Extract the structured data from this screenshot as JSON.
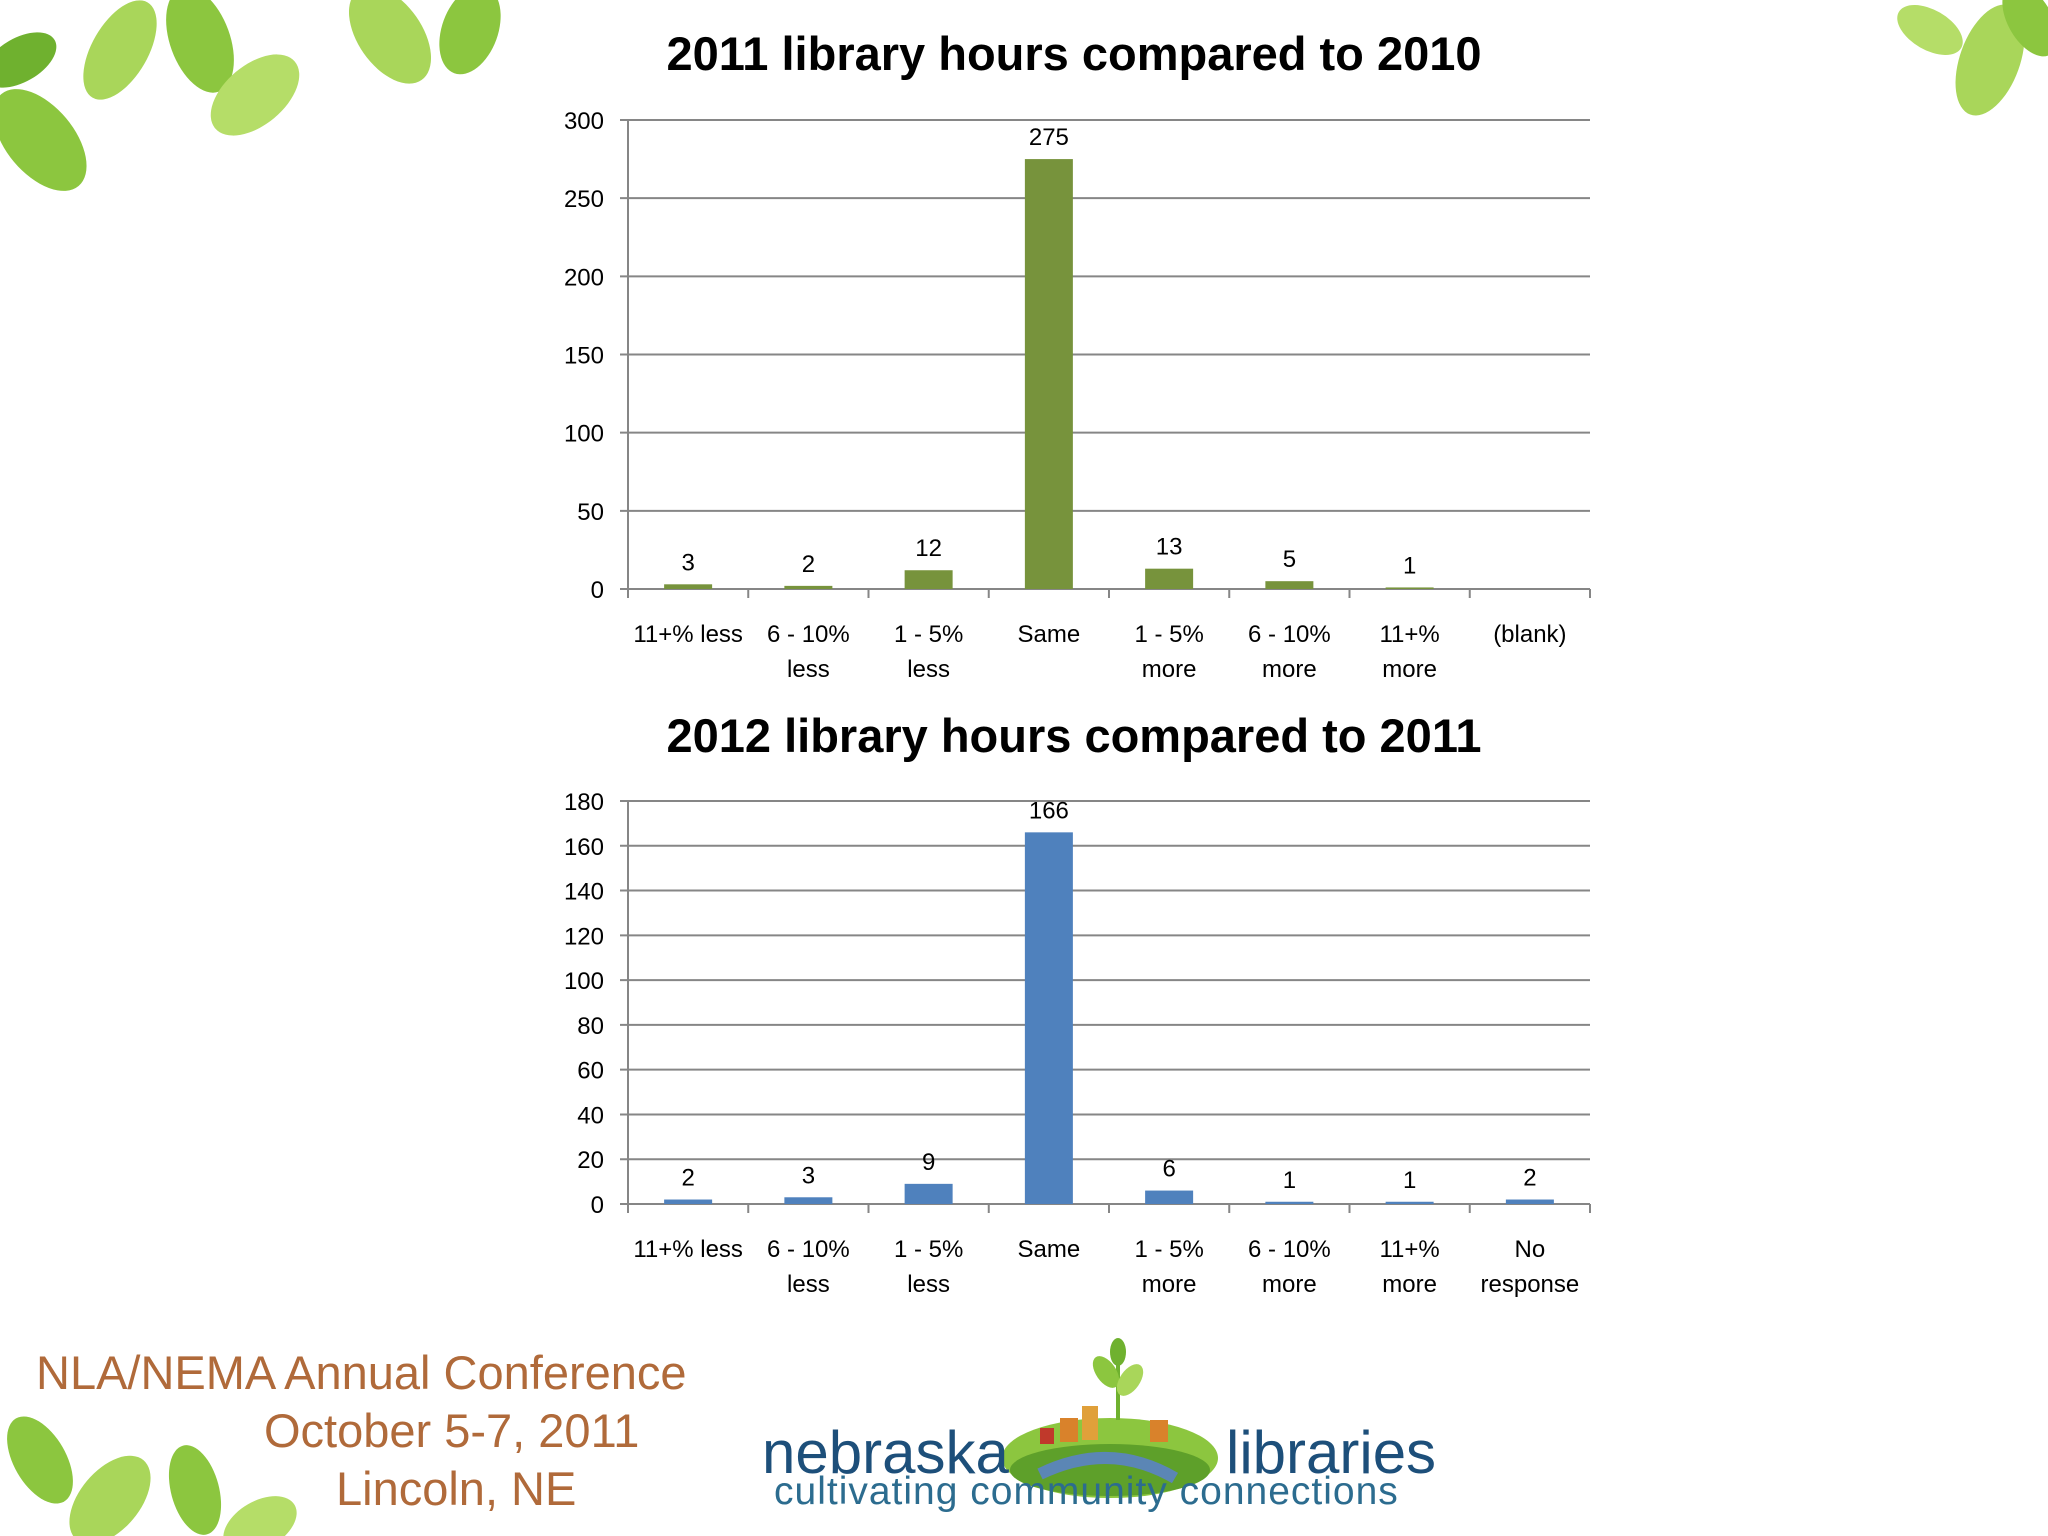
{
  "chart_data": [
    {
      "type": "bar",
      "title": "2011 library hours compared to 2010",
      "categories": [
        "11+% less",
        "6 - 10% less",
        "1 - 5% less",
        "Same",
        "1 - 5% more",
        "6 - 10% more",
        "11+% more",
        "(blank)"
      ],
      "category_lines": [
        [
          "11+% less"
        ],
        [
          "6 - 10%",
          "less"
        ],
        [
          "1 - 5%",
          "less"
        ],
        [
          "Same"
        ],
        [
          "1 - 5%",
          "more"
        ],
        [
          "6 - 10%",
          "more"
        ],
        [
          "11+%",
          "more"
        ],
        [
          "(blank)"
        ]
      ],
      "values": [
        3,
        2,
        12,
        275,
        13,
        5,
        1,
        null
      ],
      "data_labels": [
        "3",
        "2",
        "12",
        "275",
        "13",
        "5",
        "1",
        ""
      ],
      "ylim": [
        0,
        300
      ],
      "yticks": [
        0,
        50,
        100,
        150,
        200,
        250,
        300
      ],
      "grid": true,
      "color": "#77933c",
      "legend": "none"
    },
    {
      "type": "bar",
      "title": "2012 library hours compared to 2011",
      "categories": [
        "11+% less",
        "6 - 10% less",
        "1 - 5% less",
        "Same",
        "1 - 5% more",
        "6 - 10% more",
        "11+% more",
        "No response"
      ],
      "category_lines": [
        [
          "11+% less"
        ],
        [
          "6 - 10%",
          "less"
        ],
        [
          "1 - 5%",
          "less"
        ],
        [
          "Same"
        ],
        [
          "1 - 5%",
          "more"
        ],
        [
          "6 - 10%",
          "more"
        ],
        [
          "11+%",
          "more"
        ],
        [
          "No",
          "response"
        ]
      ],
      "values": [
        2,
        3,
        9,
        166,
        6,
        1,
        1,
        2
      ],
      "data_labels": [
        "2",
        "3",
        "9",
        "166",
        "6",
        "1",
        "1",
        "2"
      ],
      "ylim": [
        0,
        180
      ],
      "yticks": [
        0,
        20,
        40,
        60,
        80,
        100,
        120,
        140,
        160,
        180
      ],
      "grid": true,
      "color": "#4f81bd",
      "legend": "none"
    }
  ],
  "conference": {
    "line1": "NLA/NEMA Annual Conference",
    "line2": "October 5-7, 2011",
    "line3": "Lincoln, NE"
  },
  "logo": {
    "word1": "nebraska",
    "word2": "libraries",
    "tagline": "cultivating community connections"
  },
  "colors": {
    "leaf_light": "#a9d65a",
    "leaf_dark": "#6fb12f",
    "conference_text": "#b06a3a",
    "logo_text": "#1d4f7a"
  }
}
